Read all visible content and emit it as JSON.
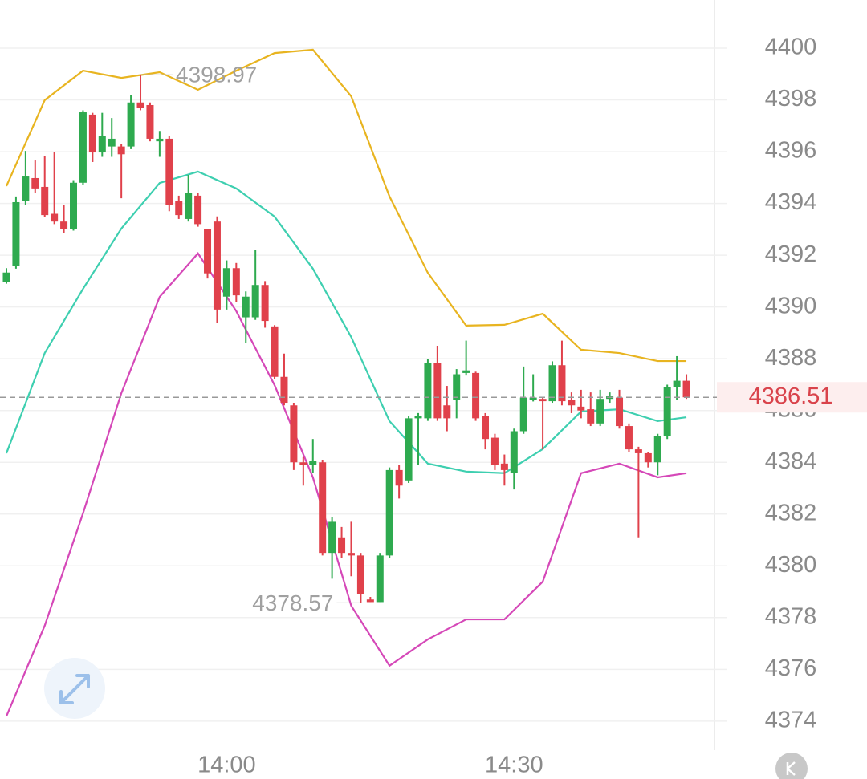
{
  "chart_data": {
    "type": "candlestick",
    "candles": {
      "up_color": "#2eaa4f",
      "down_color": "#e0414b",
      "x": [
        817,
        818,
        819,
        820,
        821,
        822,
        823,
        824,
        825,
        826,
        827,
        828,
        829,
        830,
        831,
        832,
        833,
        834,
        835,
        836,
        837,
        838,
        839,
        840,
        841,
        842,
        843,
        844,
        845,
        846,
        847,
        848,
        849,
        850,
        851,
        852,
        853,
        854,
        855,
        856,
        857,
        858,
        859,
        860,
        861,
        862,
        863,
        864,
        865,
        866,
        867,
        868,
        869,
        870,
        871,
        872,
        873,
        874,
        875,
        876,
        877,
        878,
        879,
        880,
        881,
        882,
        883,
        884,
        885,
        886,
        887,
        888
      ],
      "open": [
        4390.95,
        4391.6,
        4394.1,
        4394.98,
        4394.64,
        4393.6,
        4393.3,
        4393.0,
        4394.8,
        4397.43,
        4395.97,
        4396.2,
        4396.2,
        4396.2,
        4397.9,
        4397.8,
        4396.4,
        4396.5,
        4394.1,
        4393.4,
        4394.3,
        4393.0,
        4393.3,
        4390.4,
        4391.5,
        4389.6,
        4389.6,
        4390.85,
        4389.25,
        4387.3,
        4386.2,
        4384.0,
        4383.9,
        4384.0,
        4380.5,
        4381.1,
        4380.5,
        4380.4,
        4378.7,
        4378.6,
        4380.4,
        4383.7,
        4383.3,
        4385.7,
        4385.7,
        4387.85,
        4386.2,
        4386.4,
        4387.45,
        4387.45,
        4385.8,
        4384.95,
        4383.95,
        4383.6,
        4385.2,
        4386.4,
        4386.45,
        4386.36,
        4387.75,
        4386.4,
        4386.15,
        4386.05,
        4385.5,
        4386.45,
        4386.5,
        4385.4,
        4384.5,
        4384.35,
        4384.0,
        4385.0,
        4386.9,
        4387.15
      ],
      "high": [
        4391.5,
        4394.27,
        4396.03,
        4395.66,
        4395.82,
        4395.97,
        4393.95,
        4394.9,
        4397.6,
        4397.5,
        4397.5,
        4397.3,
        4396.3,
        4398.2,
        4398.97,
        4397.9,
        4396.8,
        4396.6,
        4394.3,
        4395.1,
        4394.4,
        4393.0,
        4393.5,
        4391.8,
        4391.7,
        4390.6,
        4392.2,
        4391.0,
        4389.3,
        4388.2,
        4386.3,
        4384.2,
        4384.9,
        4384.1,
        4381.9,
        4381.5,
        4381.7,
        4380.5,
        4378.8,
        4380.5,
        4383.8,
        4383.9,
        4385.8,
        4385.9,
        4388.0,
        4388.5,
        4386.95,
        4387.6,
        4388.7,
        4387.5,
        4385.9,
        4385.1,
        4384.3,
        4385.3,
        4387.7,
        4387.4,
        4386.5,
        4387.9,
        4388.7,
        4386.7,
        4386.8,
        4386.7,
        4386.8,
        4386.7,
        4386.8,
        4385.5,
        4384.6,
        4384.4,
        4385.1,
        4387.0,
        4388.1,
        4387.4
      ],
      "low": [
        4390.9,
        4391.48,
        4393.95,
        4394.42,
        4393.49,
        4393.2,
        4392.87,
        4392.95,
        4394.7,
        4395.6,
        4395.8,
        4395.8,
        4394.2,
        4396.1,
        4397.6,
        4396.4,
        4395.8,
        4393.7,
        4393.4,
        4393.3,
        4393.1,
        4391.1,
        4389.4,
        4389.9,
        4390.2,
        4388.6,
        4389.5,
        4389.2,
        4387.2,
        4386.2,
        4383.7,
        4383.1,
        4383.6,
        4380.4,
        4379.5,
        4380.3,
        4379.6,
        4378.57,
        4378.6,
        4378.6,
        4380.3,
        4382.6,
        4383.2,
        4383.9,
        4385.6,
        4385.6,
        4385.2,
        4385.7,
        4387.35,
        4385.6,
        4384.5,
        4383.7,
        4383.1,
        4382.95,
        4385.1,
        4386.35,
        4384.5,
        4386.3,
        4386.2,
        4385.9,
        4385.7,
        4385.4,
        4385.4,
        4386.3,
        4385.3,
        4384.4,
        4381.1,
        4383.8,
        4383.5,
        4384.9,
        4386.4,
        4386.45
      ],
      "close": [
        4391.33,
        4394.05,
        4395.04,
        4394.58,
        4393.55,
        4393.3,
        4393.0,
        4394.8,
        4397.52,
        4395.97,
        4396.6,
        4396.5,
        4395.9,
        4397.9,
        4397.7,
        4396.5,
        4396.5,
        4393.95,
        4393.55,
        4394.4,
        4393.2,
        4391.3,
        4389.9,
        4391.5,
        4390.45,
        4390.4,
        4390.85,
        4389.46,
        4387.3,
        4386.3,
        4384.0,
        4383.9,
        4384.05,
        4380.5,
        4381.7,
        4380.5,
        4380.4,
        4378.9,
        4378.6,
        4380.4,
        4383.7,
        4383.1,
        4385.7,
        4385.8,
        4387.85,
        4385.7,
        4385.7,
        4387.4,
        4387.55,
        4385.7,
        4384.9,
        4383.9,
        4383.7,
        4385.2,
        4386.5,
        4386.5,
        4386.36,
        4387.75,
        4386.36,
        4386.2,
        4386.0,
        4385.5,
        4386.45,
        4386.55,
        4385.4,
        4384.5,
        4384.35,
        4384.0,
        4385.0,
        4386.9,
        4387.15,
        4386.51
      ]
    },
    "lines": [
      {
        "color": "#e8b420",
        "x": [
          817,
          821,
          825,
          829,
          833,
          837,
          841,
          845,
          849,
          853,
          857,
          861,
          865,
          869,
          873,
          877,
          881,
          885,
          888
        ],
        "values": [
          4394.67,
          4397.99,
          4399.13,
          4398.85,
          4399.07,
          4398.39,
          4399.13,
          4399.81,
          4399.94,
          4398.14,
          4394.27,
          4391.32,
          4389.28,
          4389.31,
          4389.74,
          4388.35,
          4388.22,
          4387.91,
          4387.91
        ]
      },
      {
        "color": "#3ecfb0",
        "x": [
          817,
          821,
          825,
          829,
          833,
          837,
          841,
          845,
          849,
          853,
          857,
          861,
          865,
          869,
          873,
          877,
          881,
          885,
          888
        ],
        "values": [
          4384.35,
          4388.22,
          4390.7,
          4393.03,
          4394.79,
          4395.23,
          4394.58,
          4393.49,
          4391.48,
          4388.84,
          4385.59,
          4383.95,
          4383.64,
          4383.58,
          4384.51,
          4385.96,
          4386.05,
          4385.59,
          4385.74
        ]
      },
      {
        "color": "#d548b8",
        "x": [
          817,
          821,
          825,
          829,
          833,
          837,
          841,
          845,
          849,
          853,
          857,
          861,
          865,
          869,
          873,
          877,
          881,
          885,
          888
        ],
        "values": [
          4374.19,
          4377.69,
          4382.03,
          4386.67,
          4390.39,
          4392.07,
          4389.84,
          4386.98,
          4383.42,
          4378.46,
          4376.14,
          4377.16,
          4377.93,
          4377.93,
          4379.39,
          4383.58,
          4383.95,
          4383.42,
          4383.58
        ]
      }
    ],
    "xlim": [
      816.33,
      890.93
    ],
    "xticks": [
      {
        "value": 840,
        "label": "14:00"
      },
      {
        "value": 870,
        "label": "14:30"
      }
    ],
    "ylim": [
      4372.88,
      4401.86
    ],
    "yticks": [
      4374,
      4376,
      4378,
      4380,
      4382,
      4384,
      4386,
      4388,
      4390,
      4392,
      4394,
      4396,
      4398,
      4400
    ],
    "grid": true
  }
}
